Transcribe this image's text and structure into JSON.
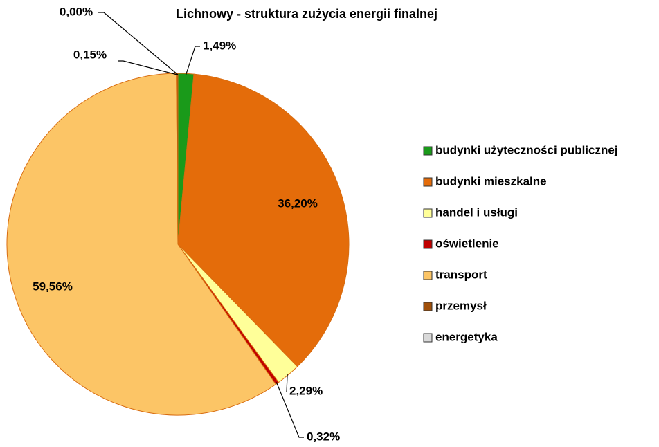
{
  "chart_data": {
    "type": "pie",
    "title": "Lichnowy - struktura zużycia energii finalnej",
    "categories": [
      "budynki użyteczności publicznej",
      "budynki mieszkalne",
      "handel i usługi",
      "oświetlenie",
      "transport",
      "przemysł",
      "energetyka"
    ],
    "values": [
      1.49,
      36.2,
      2.29,
      0.32,
      59.56,
      0.15,
      0.0
    ],
    "value_labels": [
      "1,49%",
      "36,20%",
      "2,29%",
      "0,32%",
      "59,56%",
      "0,15%",
      "0,00%"
    ],
    "colors": [
      "#1a9a1a",
      "#e46c0a",
      "#ffff99",
      "#c00000",
      "#fcc566",
      "#a0500a",
      "#d9d9d9"
    ],
    "legend": "right"
  }
}
